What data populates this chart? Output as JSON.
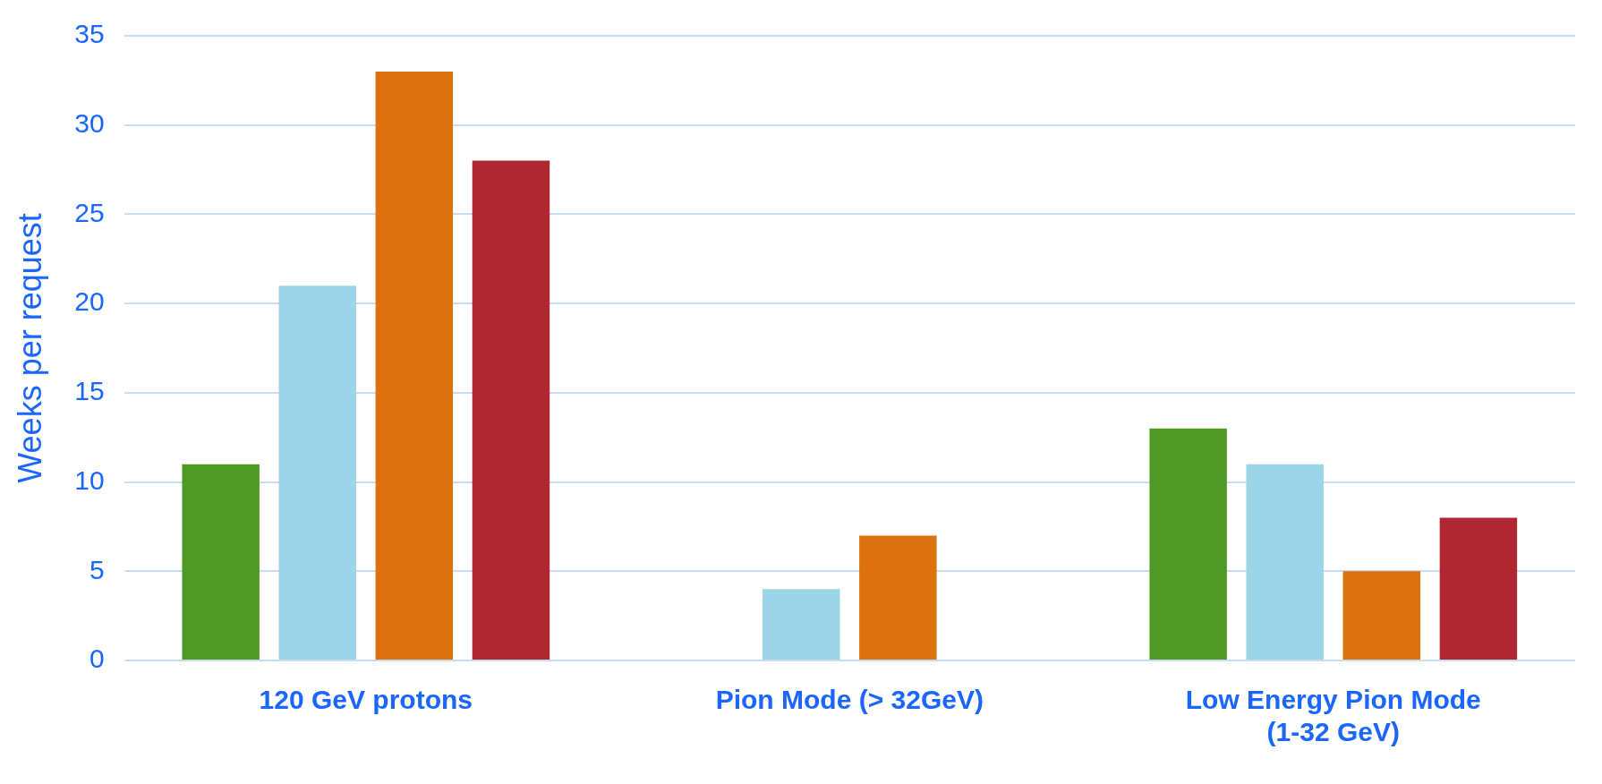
{
  "chart_data": {
    "type": "bar",
    "ylabel": "Weeks per request",
    "categories": [
      "120 GeV protons",
      "Pion Mode (> 32GeV)",
      "Low Energy Pion Mode (1-32 GeV)"
    ],
    "series": [
      {
        "color": "#4f9a26",
        "values": [
          11,
          null,
          13
        ]
      },
      {
        "color": "#9dd5e8",
        "values": [
          21,
          4,
          11
        ]
      },
      {
        "color": "#dc720e",
        "values": [
          33,
          7,
          5
        ]
      },
      {
        "color": "#ae2731",
        "values": [
          28,
          null,
          8
        ]
      }
    ],
    "ylim": [
      0,
      35
    ],
    "yticks": [
      0,
      5,
      10,
      15,
      20,
      25,
      30,
      35
    ],
    "grid": "y",
    "legend": false
  }
}
